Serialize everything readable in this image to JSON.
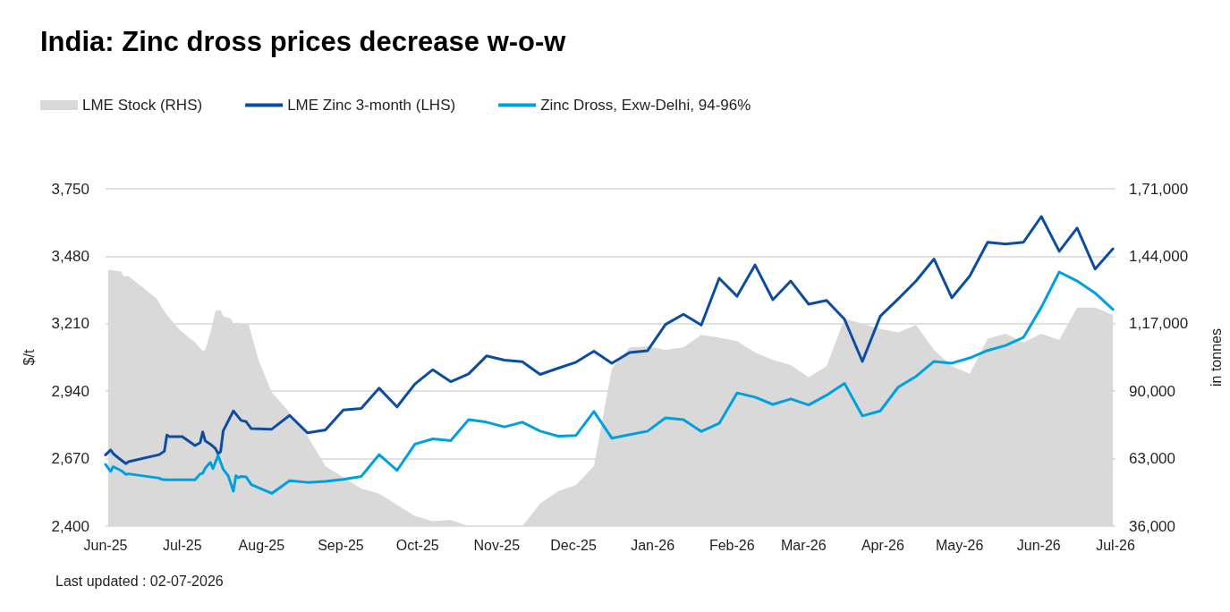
{
  "chart_data": {
    "type": "line",
    "title": "India: Zinc dross prices decrease w-o-w",
    "ylabel": "$/t",
    "y2label": "in tonnes",
    "annotations": [
      "Last updated : 02-07-2026"
    ],
    "series": [
      {
        "name": "LME Stock (RHS)",
        "type": "area",
        "axis": "y2",
        "color": "#d9d9d9",
        "x": [
          "2025-06-02",
          "2025-06-07",
          "2025-06-08",
          "2025-06-10",
          "2025-06-15",
          "2025-06-21",
          "2025-06-23",
          "2025-06-25",
          "2025-06-30",
          "2025-07-06",
          "2025-07-09",
          "2025-07-10",
          "2025-07-12",
          "2025-07-14",
          "2025-07-16",
          "2025-07-17",
          "2025-07-20",
          "2025-07-21",
          "2025-07-22",
          "2025-07-27",
          "2025-07-31",
          "2025-08-05",
          "2025-08-12",
          "2025-08-19",
          "2025-08-26",
          "2025-09-02",
          "2025-09-09",
          "2025-09-16",
          "2025-09-23",
          "2025-09-30",
          "2025-10-07",
          "2025-10-14",
          "2025-10-21",
          "2025-10-28",
          "2025-11-04",
          "2025-11-11",
          "2025-11-18",
          "2025-11-25",
          "2025-12-02",
          "2025-12-09",
          "2025-12-16",
          "2025-12-23",
          "2025-12-30",
          "2026-01-06",
          "2026-01-13",
          "2026-01-20",
          "2026-01-27",
          "2026-02-03",
          "2026-02-10",
          "2026-02-17",
          "2026-02-24",
          "2026-03-03",
          "2026-03-10",
          "2026-03-17",
          "2026-03-24",
          "2026-03-31",
          "2026-04-07",
          "2026-04-14",
          "2026-04-21",
          "2026-04-28",
          "2026-05-05",
          "2026-05-12",
          "2026-05-19",
          "2026-05-26",
          "2026-06-02",
          "2026-06-09",
          "2026-06-16",
          "2026-06-23",
          "2026-06-30"
        ],
        "values": [
          138500,
          138000,
          136000,
          136000,
          132000,
          127000,
          123500,
          120500,
          114500,
          109500,
          106000,
          106500,
          113500,
          122000,
          122500,
          120000,
          119000,
          117000,
          117500,
          116500,
          102000,
          89500,
          81500,
          72000,
          60000,
          55500,
          51000,
          49000,
          44500,
          40000,
          38000,
          38500,
          36000,
          36000,
          36000,
          36000,
          45000,
          50000,
          52500,
          60000,
          99000,
          107500,
          108000,
          106500,
          107500,
          112500,
          111500,
          110000,
          105500,
          102500,
          100500,
          95500,
          100000,
          119000,
          117000,
          115000,
          113500,
          116500,
          106500,
          100000,
          97000,
          111000,
          113000,
          109500,
          113000,
          110500,
          123500,
          123500,
          120500
        ]
      },
      {
        "name": "LME Zinc 3-month (LHS)",
        "color": "#0c4da2",
        "x": [
          "2025-06-01",
          "2025-06-03",
          "2025-06-04",
          "2025-06-06",
          "2025-06-09",
          "2025-06-10",
          "2025-06-22",
          "2025-06-24",
          "2025-06-25",
          "2025-06-26",
          "2025-07-01",
          "2025-07-06",
          "2025-07-08",
          "2025-07-09",
          "2025-07-10",
          "2025-07-12",
          "2025-07-14",
          "2025-07-15",
          "2025-07-16",
          "2025-07-17",
          "2025-07-21",
          "2025-07-24",
          "2025-07-26",
          "2025-07-28",
          "2025-08-05",
          "2025-08-12",
          "2025-08-19",
          "2025-08-26",
          "2025-09-02",
          "2025-09-09",
          "2025-09-16",
          "2025-09-23",
          "2025-09-30",
          "2025-10-07",
          "2025-10-14",
          "2025-10-21",
          "2025-10-28",
          "2025-11-04",
          "2025-11-11",
          "2025-11-18",
          "2025-11-25",
          "2025-12-02",
          "2025-12-09",
          "2025-12-16",
          "2025-12-23",
          "2025-12-30",
          "2026-01-06",
          "2026-01-13",
          "2026-01-20",
          "2026-01-27",
          "2026-02-03",
          "2026-02-10",
          "2026-02-17",
          "2026-02-24",
          "2026-03-03",
          "2026-03-10",
          "2026-03-17",
          "2026-03-24",
          "2026-03-31",
          "2026-04-07",
          "2026-04-14",
          "2026-04-21",
          "2026-04-28",
          "2026-05-05",
          "2026-05-12",
          "2026-05-19",
          "2026-05-26",
          "2026-06-02",
          "2026-06-09",
          "2026-06-16",
          "2026-06-23",
          "2026-06-30"
        ],
        "values": [
          2685,
          2705,
          2690,
          2673,
          2650,
          2658,
          2686,
          2700,
          2764,
          2758,
          2758,
          2722,
          2734,
          2777,
          2741,
          2728,
          2710,
          2690,
          2698,
          2781,
          2861,
          2823,
          2818,
          2790,
          2788,
          2843,
          2773,
          2785,
          2865,
          2871,
          2952,
          2877,
          2969,
          3026,
          2978,
          3009,
          3081,
          3064,
          3058,
          3007,
          3032,
          3056,
          3100,
          3052,
          3095,
          3102,
          3207,
          3248,
          3205,
          3392,
          3320,
          3445,
          3306,
          3381,
          3288,
          3303,
          3228,
          3059,
          3240,
          3309,
          3381,
          3469,
          3314,
          3401,
          3536,
          3529,
          3536,
          3639,
          3500,
          3593,
          3429,
          3510
        ]
      },
      {
        "name": "Zinc Dross, Exw-Delhi, 94-96%",
        "color": "#00a0df",
        "x": [
          "2025-06-01",
          "2025-06-03",
          "2025-06-04",
          "2025-06-07",
          "2025-06-09",
          "2025-06-10",
          "2025-06-22",
          "2025-06-23",
          "2025-06-25",
          "2025-07-06",
          "2025-07-08",
          "2025-07-09",
          "2025-07-10",
          "2025-07-11",
          "2025-07-12",
          "2025-07-13",
          "2025-07-15",
          "2025-07-17",
          "2025-07-19",
          "2025-07-21",
          "2025-07-22",
          "2025-07-23",
          "2025-07-24",
          "2025-07-26",
          "2025-07-28",
          "2025-08-05",
          "2025-08-12",
          "2025-08-19",
          "2025-08-26",
          "2025-09-02",
          "2025-09-09",
          "2025-09-16",
          "2025-09-23",
          "2025-09-30",
          "2025-10-07",
          "2025-10-14",
          "2025-10-21",
          "2025-10-28",
          "2025-11-04",
          "2025-11-11",
          "2025-11-18",
          "2025-11-25",
          "2025-12-02",
          "2025-12-09",
          "2025-12-16",
          "2025-12-23",
          "2025-12-30",
          "2026-01-06",
          "2026-01-13",
          "2026-01-20",
          "2026-01-27",
          "2026-02-03",
          "2026-02-10",
          "2026-02-17",
          "2026-02-24",
          "2026-03-03",
          "2026-03-10",
          "2026-03-17",
          "2026-03-24",
          "2026-03-31",
          "2026-04-07",
          "2026-04-14",
          "2026-04-21",
          "2026-04-28",
          "2026-05-05",
          "2026-05-12",
          "2026-05-19",
          "2026-05-26",
          "2026-06-02",
          "2026-06-09",
          "2026-06-16",
          "2026-06-23",
          "2026-06-30"
        ],
        "values": [
          2647,
          2619,
          2638,
          2623,
          2607,
          2609,
          2592,
          2587,
          2585,
          2585,
          2609,
          2611,
          2632,
          2644,
          2655,
          2630,
          2683,
          2628,
          2601,
          2540,
          2602,
          2594,
          2599,
          2597,
          2566,
          2531,
          2582,
          2575,
          2579,
          2587,
          2599,
          2686,
          2623,
          2728,
          2749,
          2742,
          2826,
          2816,
          2797,
          2816,
          2780,
          2760,
          2763,
          2859,
          2752,
          2766,
          2780,
          2833,
          2826,
          2779,
          2811,
          2933,
          2916,
          2887,
          2909,
          2885,
          2924,
          2971,
          2841,
          2861,
          2956,
          2999,
          3059,
          3052,
          3073,
          3103,
          3123,
          3155,
          3276,
          3417,
          3381,
          3333,
          3267
        ]
      }
    ],
    "xlim": [
      "2025-06-01",
      "2026-07-01"
    ],
    "xticks": [
      {
        "value": "2025-06-01",
        "label": "Jun-25"
      },
      {
        "value": "2025-07-01",
        "label": "Jul-25"
      },
      {
        "value": "2025-08-01",
        "label": "Aug-25"
      },
      {
        "value": "2025-09-01",
        "label": "Sep-25"
      },
      {
        "value": "2025-10-01",
        "label": "Oct-25"
      },
      {
        "value": "2025-11-01",
        "label": "Nov-25"
      },
      {
        "value": "2025-12-01",
        "label": "Dec-25"
      },
      {
        "value": "2026-01-01",
        "label": "Jan-26"
      },
      {
        "value": "2026-02-01",
        "label": "Feb-26"
      },
      {
        "value": "2026-03-01",
        "label": "Mar-26"
      },
      {
        "value": "2026-04-01",
        "label": "Apr-26"
      },
      {
        "value": "2026-05-01",
        "label": "May-26"
      },
      {
        "value": "2026-06-01",
        "label": "Jun-26"
      },
      {
        "value": "2026-07-01",
        "label": "Jul-26"
      }
    ],
    "ylim": [
      2400,
      3750
    ],
    "yticks": [
      {
        "value": 2400,
        "label": "2,400"
      },
      {
        "value": 2670,
        "label": "2,670"
      },
      {
        "value": 2940,
        "label": "2,940"
      },
      {
        "value": 3210,
        "label": "3,210"
      },
      {
        "value": 3480,
        "label": "3,480"
      },
      {
        "value": 3750,
        "label": "3,750"
      }
    ],
    "y2lim": [
      36000,
      171000
    ],
    "y2ticks": [
      {
        "value": 36000,
        "label": "36,000"
      },
      {
        "value": 63000,
        "label": "63,000"
      },
      {
        "value": 90000,
        "label": "90,000"
      },
      {
        "value": 117000,
        "label": "1,17,000"
      },
      {
        "value": 144000,
        "label": "1,44,000"
      },
      {
        "value": 171000,
        "label": "1,71,000"
      }
    ],
    "grid": "y",
    "legend": "top left",
    "marker": "none",
    "line_style": "solid"
  }
}
